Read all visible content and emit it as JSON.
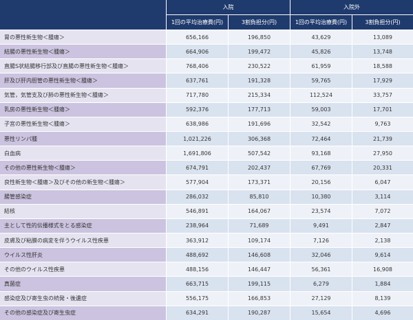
{
  "header": {
    "groups": [
      "入院",
      "入院外"
    ],
    "columns": [
      "1回の平均治療費(円)",
      "3割負担分(円)",
      "1回の平均治療費(円)",
      "3割負担分(円)"
    ]
  },
  "table": {
    "rows": [
      [
        "胃の悪性新生物＜腫瘍＞",
        "656,166",
        "196,850",
        "43,629",
        "13,089"
      ],
      [
        "結腸の悪性新生物＜腫瘍＞",
        "664,906",
        "199,472",
        "45,826",
        "13,748"
      ],
      [
        "直腸S状結腸移行部及び直腸の悪性新生物＜腫瘍＞",
        "768,406",
        "230,522",
        "61,959",
        "18,588"
      ],
      [
        "肝及び肝内胆管の悪性新生物＜腫瘍＞",
        "637,761",
        "191,328",
        "59,765",
        "17,929"
      ],
      [
        "気管，気管支及び肺の悪性新生物＜腫瘍＞",
        "717,780",
        "215,334",
        "112,524",
        "33,757"
      ],
      [
        "乳房の悪性新生物＜腫瘍＞",
        "592,376",
        "177,713",
        "59,003",
        "17,701"
      ],
      [
        "子宮の悪性新生物＜腫瘍＞",
        "638,986",
        "191,696",
        "32,542",
        "9,763"
      ],
      [
        "悪性リンパ腫",
        "1,021,226",
        "306,368",
        "72,464",
        "21,739"
      ],
      [
        "白血病",
        "1,691,806",
        "507,542",
        "93,168",
        "27,950"
      ],
      [
        "その他の悪性新生物＜腫瘍＞",
        "674,791",
        "202,437",
        "67,769",
        "20,331"
      ],
      [
        "良性新生物＜腫瘍＞及びその他の新生物＜腫瘍＞",
        "577,904",
        "173,371",
        "20,156",
        "6,047"
      ],
      [
        "腸管感染症",
        "286,032",
        "85,810",
        "10,380",
        "3,114"
      ],
      [
        "結核",
        "546,891",
        "164,067",
        "23,574",
        "7,072"
      ],
      [
        "主として性的伝播様式をとる感染症",
        "238,964",
        "71,689",
        "9,491",
        "2,847"
      ],
      [
        "皮膚及び粘膜の病変を伴うウイルス性疾患",
        "363,912",
        "109,174",
        "7,126",
        "2,138"
      ],
      [
        "ウイルス性肝炎",
        "488,692",
        "146,608",
        "32,046",
        "9,614"
      ],
      [
        "その他のウイルス性疾患",
        "488,156",
        "146,447",
        "56,361",
        "16,908"
      ],
      [
        "真菌症",
        "663,715",
        "199,115",
        "6,279",
        "1,884"
      ],
      [
        "感染症及び寄生虫の続発・後遺症",
        "556,175",
        "166,853",
        "27,129",
        "8,139"
      ],
      [
        "その他の感染症及び寄生虫症",
        "634,291",
        "190,287",
        "15,654",
        "4,696"
      ]
    ]
  }
}
